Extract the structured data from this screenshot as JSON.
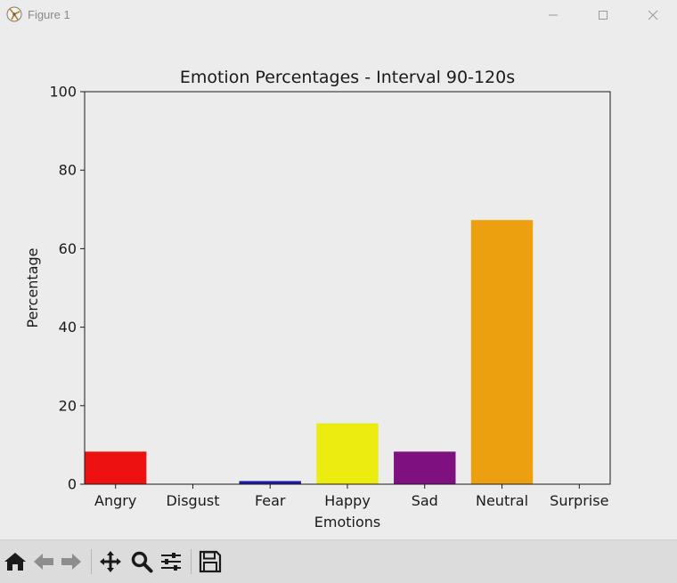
{
  "window": {
    "title": "Figure 1",
    "controls": [
      "minimize-icon",
      "maximize-icon",
      "close-icon"
    ]
  },
  "toolbar": {
    "buttons": [
      "home-icon",
      "back-icon",
      "forward-icon",
      "pan-icon",
      "zoom-icon",
      "configure-icon",
      "save-icon"
    ]
  },
  "chart_data": {
    "type": "bar",
    "title": "Emotion Percentages - Interval 90-120s",
    "xlabel": "Emotions",
    "ylabel": "Percentage",
    "categories": [
      "Angry",
      "Disgust",
      "Fear",
      "Happy",
      "Sad",
      "Neutral",
      "Surprise"
    ],
    "values": [
      8.3,
      0,
      0.8,
      15.5,
      8.3,
      67.3,
      0
    ],
    "colors": [
      "#ee1111",
      "#2e8b2e",
      "#1a1aa6",
      "#ecec10",
      "#7f107f",
      "#eca010",
      "#10b0b0"
    ],
    "ylim": [
      0,
      100
    ],
    "yticks": [
      0,
      20,
      40,
      60,
      80,
      100
    ],
    "grid": false,
    "legend": "none"
  }
}
